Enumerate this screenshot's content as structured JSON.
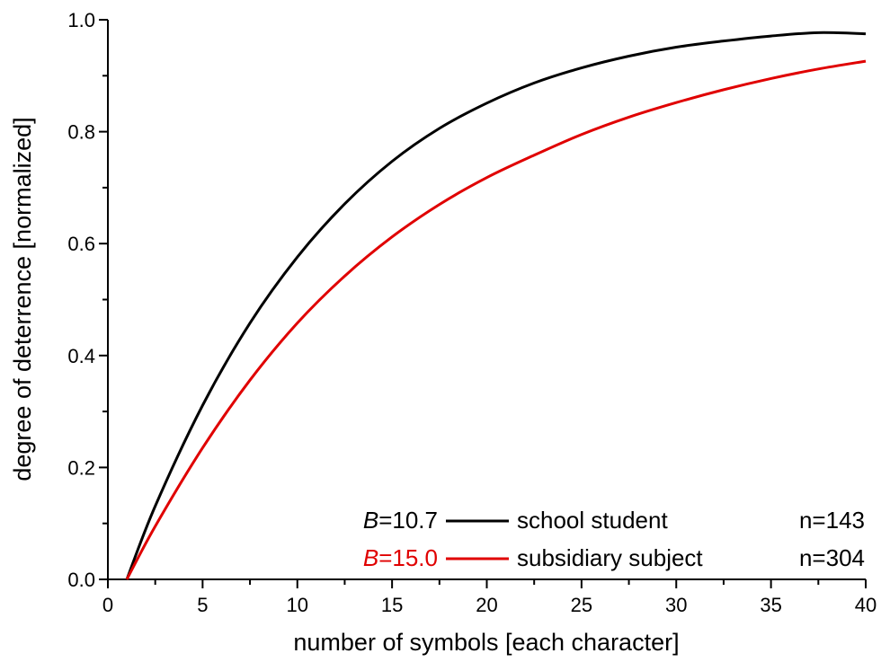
{
  "chart_data": {
    "type": "line",
    "xlabel": "number of symbols [each character]",
    "ylabel": "degree of deterrence [normalized]",
    "xlim": [
      0,
      40
    ],
    "ylim": [
      0,
      1.0
    ],
    "x_ticks": [
      "0",
      "5",
      "10",
      "15",
      "20",
      "25",
      "30",
      "35",
      "40"
    ],
    "y_ticks": [
      "0.0",
      "0.2",
      "0.4",
      "0.6",
      "0.8",
      "1.0"
    ],
    "grid": false,
    "legend_position": "bottom-right",
    "x": [
      1,
      2.5,
      5,
      7.5,
      10,
      12.5,
      15,
      17.5,
      20,
      22.5,
      25,
      27.5,
      30,
      32.5,
      35,
      37.5,
      40
    ],
    "series": [
      {
        "name": "school student",
        "B_label": "B",
        "B_value": "=10.7",
        "n_label": "n=143",
        "color": "#000000",
        "values": [
          0.0,
          0.131,
          0.311,
          0.458,
          0.576,
          0.671,
          0.747,
          0.806,
          0.851,
          0.887,
          0.914,
          0.935,
          0.951,
          0.962,
          0.971,
          0.977,
          0.975
        ]
      },
      {
        "name": "subsidiary subject",
        "B_label": "B",
        "B_value": "=15.0",
        "n_label": "n=304",
        "color": "#e00000",
        "values": [
          0.0,
          0.095,
          0.235,
          0.356,
          0.458,
          0.542,
          0.612,
          0.67,
          0.718,
          0.758,
          0.795,
          0.826,
          0.852,
          0.875,
          0.895,
          0.912,
          0.926
        ]
      }
    ]
  }
}
